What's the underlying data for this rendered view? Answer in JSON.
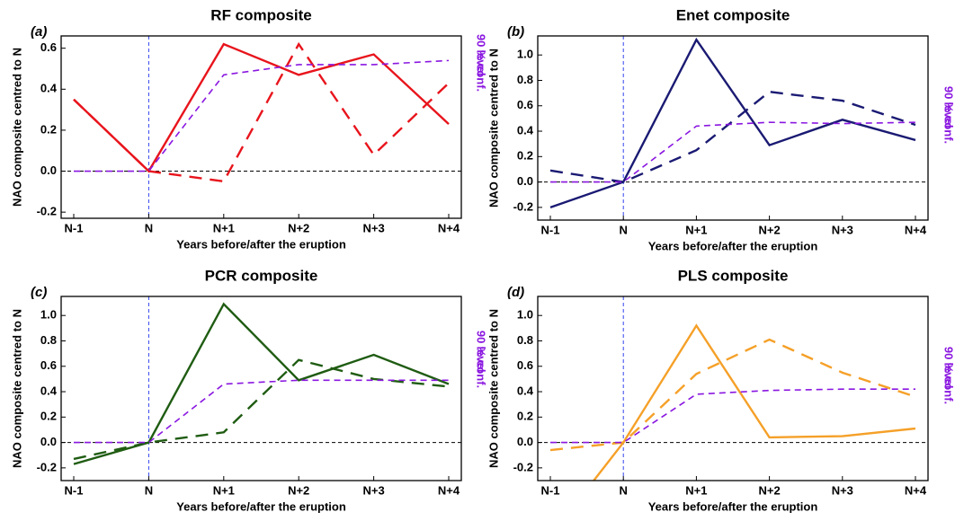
{
  "chart_data": [
    {
      "type": "line",
      "panel_label": "(a)",
      "title": "RF composite",
      "xlabel": "Years before/after the eruption",
      "ylabel": "NAO composite centred to N",
      "y2label": [
        "90 % conf.",
        "level"
      ],
      "categories": [
        "N-1",
        "N",
        "N+1",
        "N+2",
        "N+3",
        "N+4"
      ],
      "ylim": [
        -0.23,
        0.66
      ],
      "yticks": [
        -0.2,
        {
          "value": 0,
          "label": "0.0"
        },
        0.2,
        0.4,
        0.6
      ],
      "series": [
        {
          "color": "#e8141c",
          "linestyle": "solid",
          "values": [
            0.35,
            0.0,
            0.62,
            0.47,
            0.57,
            0.23
          ]
        },
        {
          "color": "#e8141c",
          "linestyle": "dashed",
          "values": [
            0.35,
            0.0,
            -0.05,
            0.62,
            0.08,
            0.43
          ]
        },
        {
          "color": "#8a17e0",
          "linestyle": "dashed",
          "values": [
            0.0,
            0.0,
            0.47,
            0.52,
            0.52,
            0.54
          ]
        }
      ]
    },
    {
      "type": "line",
      "panel_label": "(b)",
      "title": "Enet composite",
      "xlabel": "Years before/after the eruption",
      "ylabel": "NAO composite centred to N",
      "y2label": [
        "90 % conf.",
        "level"
      ],
      "categories": [
        "N-1",
        "N",
        "N+1",
        "N+2",
        "N+3",
        "N+4"
      ],
      "ylim": [
        -0.3,
        1.15
      ],
      "yticks": [
        -0.2,
        {
          "value": 0,
          "label": "0.0"
        },
        0.2,
        0.4,
        0.6,
        0.8,
        {
          "value": 1,
          "label": "1.0"
        }
      ],
      "series": [
        {
          "color": "#1a1a73",
          "linestyle": "solid",
          "values": [
            -0.2,
            0.0,
            1.12,
            0.29,
            0.49,
            0.33
          ]
        },
        {
          "color": "#1a1a73",
          "linestyle": "dashed",
          "values": [
            0.09,
            0.0,
            0.25,
            0.71,
            0.64,
            0.45
          ]
        },
        {
          "color": "#8a17e0",
          "linestyle": "dashed",
          "values": [
            0.0,
            0.0,
            0.44,
            0.47,
            0.46,
            0.47
          ]
        }
      ]
    },
    {
      "type": "line",
      "panel_label": "(c)",
      "title": "PCR composite",
      "xlabel": "Years before/after the eruption",
      "ylabel": "NAO composite centred to N",
      "y2label": [
        "90 % conf.",
        "level"
      ],
      "categories": [
        "N-1",
        "N",
        "N+1",
        "N+2",
        "N+3",
        "N+4"
      ],
      "ylim": [
        -0.3,
        1.15
      ],
      "yticks": [
        -0.2,
        {
          "value": 0,
          "label": "0.0"
        },
        0.2,
        0.4,
        0.6,
        0.8,
        {
          "value": 1,
          "label": "1.0"
        }
      ],
      "series": [
        {
          "color": "#1f5c12",
          "linestyle": "solid",
          "values": [
            -0.17,
            0.0,
            1.09,
            0.49,
            0.69,
            0.46
          ]
        },
        {
          "color": "#1f5c12",
          "linestyle": "dashed",
          "values": [
            -0.13,
            0.0,
            0.08,
            0.65,
            0.5,
            0.44
          ]
        },
        {
          "color": "#8a17e0",
          "linestyle": "dashed",
          "values": [
            0.0,
            0.0,
            0.46,
            0.49,
            0.49,
            0.49
          ]
        }
      ]
    },
    {
      "type": "line",
      "panel_label": "(d)",
      "title": "PLS composite",
      "xlabel": "Years before/after the eruption",
      "ylabel": "NAO composite centred to N",
      "y2label": [
        "90 % conf.",
        "level"
      ],
      "categories": [
        "N-1",
        "N",
        "N+1",
        "N+2",
        "N+3",
        "N+4"
      ],
      "ylim": [
        -0.3,
        1.15
      ],
      "yticks": [
        -0.2,
        {
          "value": 0,
          "label": "0.0"
        },
        0.2,
        0.4,
        0.6,
        0.8,
        {
          "value": 1,
          "label": "1.0"
        }
      ],
      "series": [
        {
          "color": "#f5a028",
          "linestyle": "solid",
          "values": [
            -0.74,
            0.0,
            0.92,
            0.04,
            0.05,
            0.11
          ]
        },
        {
          "color": "#f5a028",
          "linestyle": "dashed",
          "values": [
            -0.06,
            0.0,
            0.54,
            0.81,
            0.55,
            0.36
          ]
        },
        {
          "color": "#8a17e0",
          "linestyle": "dashed",
          "values": [
            0.0,
            0.0,
            0.38,
            0.41,
            0.42,
            0.42
          ]
        }
      ]
    }
  ]
}
